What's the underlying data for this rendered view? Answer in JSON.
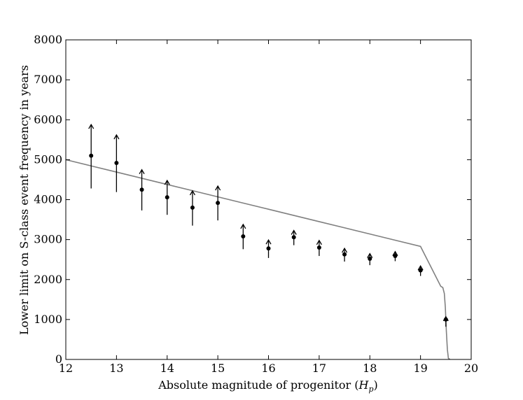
{
  "chart_data": {
    "type": "scatter",
    "title": "",
    "xlabel": "Absolute magnitude of progenitor (H_p)",
    "xlabel_parts": {
      "prefix": "Absolute magnitude of progenitor (",
      "var": "H",
      "sub": "p",
      "suffix": ")"
    },
    "ylabel": "Lower limit on S-class event frequency in years",
    "xlim": [
      12,
      20
    ],
    "ylim": [
      0,
      8000
    ],
    "xticks": [
      12,
      13,
      14,
      15,
      16,
      17,
      18,
      19,
      20
    ],
    "yticks": [
      0,
      1000,
      2000,
      3000,
      4000,
      5000,
      6000,
      7000,
      8000
    ],
    "grid": false,
    "legend": "none",
    "series": [
      {
        "type": "errorbar-lower-limits",
        "color": "#000000",
        "points": [
          {
            "x": 12.5,
            "y": 5100,
            "err_low": 820,
            "arrow_top": 5880
          },
          {
            "x": 13.0,
            "y": 4920,
            "err_low": 730,
            "arrow_top": 5620
          },
          {
            "x": 13.5,
            "y": 4250,
            "err_low": 520,
            "arrow_top": 4750
          },
          {
            "x": 14.0,
            "y": 4060,
            "err_low": 440,
            "arrow_top": 4480
          },
          {
            "x": 14.5,
            "y": 3800,
            "err_low": 450,
            "arrow_top": 4220
          },
          {
            "x": 15.0,
            "y": 3920,
            "err_low": 440,
            "arrow_top": 4340
          },
          {
            "x": 15.5,
            "y": 3080,
            "err_low": 320,
            "arrow_top": 3380
          },
          {
            "x": 16.0,
            "y": 2780,
            "err_low": 240,
            "arrow_top": 2990
          },
          {
            "x": 16.5,
            "y": 3060,
            "err_low": 200,
            "arrow_top": 3230
          },
          {
            "x": 17.0,
            "y": 2800,
            "err_low": 210,
            "arrow_top": 2980
          },
          {
            "x": 17.5,
            "y": 2630,
            "err_low": 180,
            "arrow_top": 2780
          },
          {
            "x": 18.0,
            "y": 2520,
            "err_low": 160,
            "arrow_top": 2650
          },
          {
            "x": 18.5,
            "y": 2590,
            "err_low": 130,
            "arrow_top": 2700
          },
          {
            "x": 19.0,
            "y": 2230,
            "err_low": 140,
            "arrow_top": 2340
          },
          {
            "x": 19.5,
            "y": 1000,
            "err_low": 180,
            "arrow_top": 1070
          }
        ]
      },
      {
        "type": "line",
        "color": "#808080",
        "points": [
          [
            12.0,
            5000
          ],
          [
            12.5,
            4845
          ],
          [
            13.0,
            4690
          ],
          [
            13.5,
            4535
          ],
          [
            14.0,
            4380
          ],
          [
            14.5,
            4225
          ],
          [
            15.0,
            4070
          ],
          [
            15.5,
            3915
          ],
          [
            16.0,
            3760
          ],
          [
            16.5,
            3605
          ],
          [
            17.0,
            3450
          ],
          [
            17.5,
            3295
          ],
          [
            18.0,
            3140
          ],
          [
            18.5,
            2985
          ],
          [
            19.0,
            2830
          ],
          [
            19.4,
            1830
          ],
          [
            19.44,
            1800
          ],
          [
            19.47,
            1650
          ],
          [
            19.49,
            1300
          ],
          [
            19.51,
            700
          ],
          [
            19.53,
            250
          ],
          [
            19.55,
            30
          ],
          [
            19.58,
            0
          ]
        ]
      }
    ]
  }
}
